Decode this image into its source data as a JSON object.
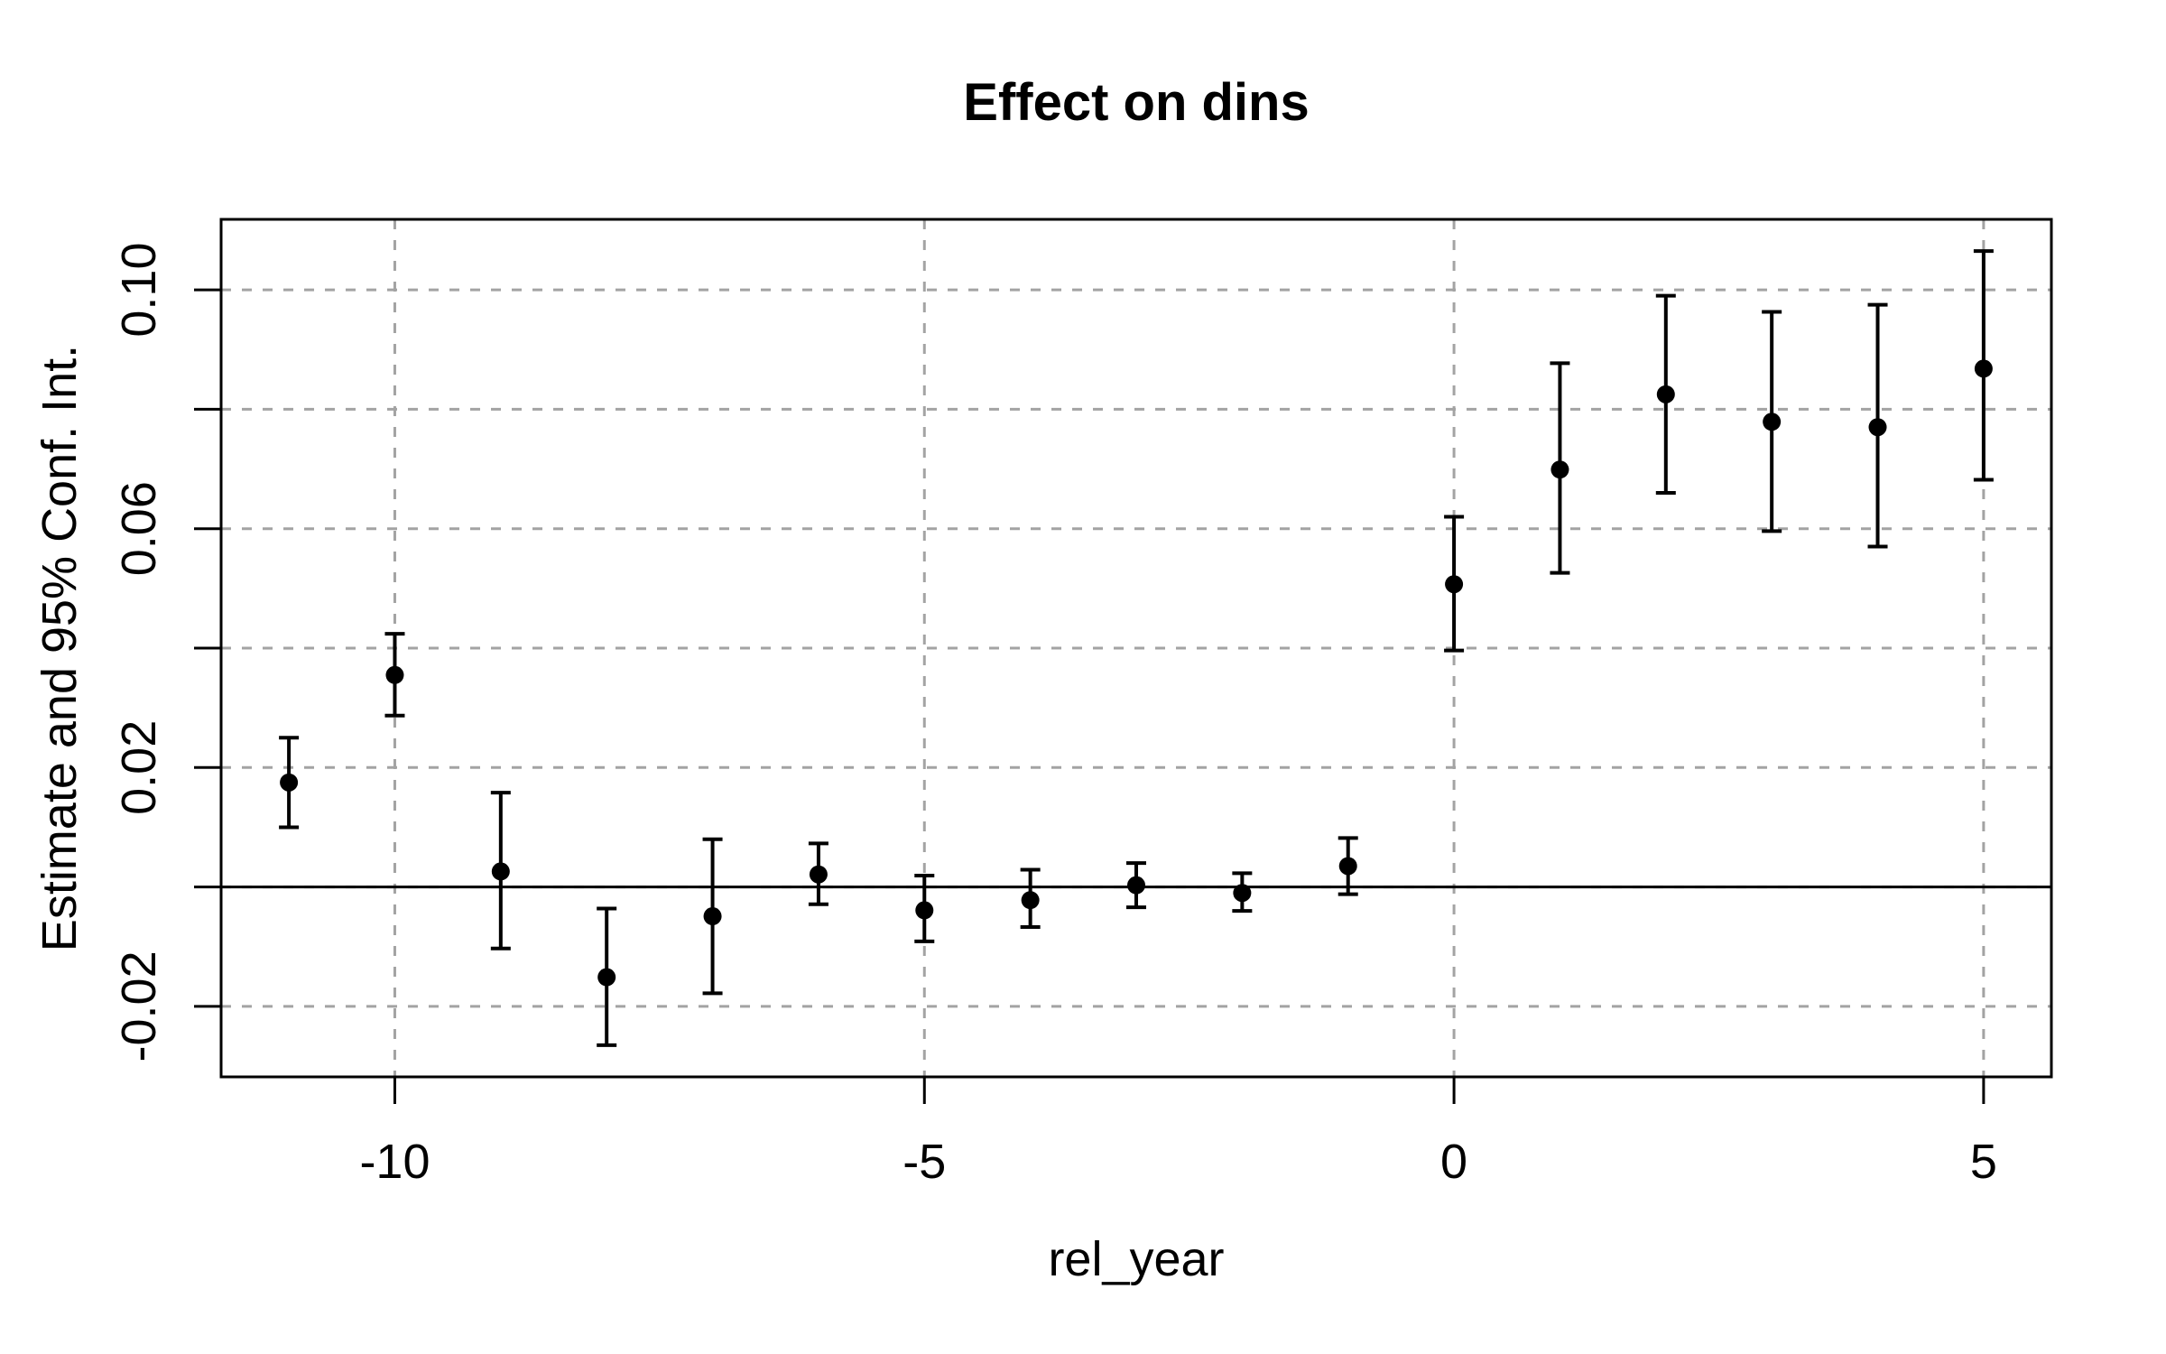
{
  "chart_data": {
    "type": "scatter",
    "title": "Effect on dins",
    "xlabel": "rel_year",
    "ylabel": "Estimate and 95% Conf. Int.",
    "xlim": [
      -11.64,
      5.64
    ],
    "ylim": [
      -0.0318,
      0.1118
    ],
    "grid_on": true,
    "legend": "none",
    "x_ticks": [
      {
        "value": -10,
        "label": "-10"
      },
      {
        "value": -5,
        "label": "-5"
      },
      {
        "value": 0,
        "label": "0"
      },
      {
        "value": 5,
        "label": "5"
      }
    ],
    "y_ticks": [
      {
        "value": 0.1,
        "label": "0.10"
      },
      {
        "value": 0.08,
        "label": ""
      },
      {
        "value": 0.06,
        "label": "0.06"
      },
      {
        "value": 0.04,
        "label": ""
      },
      {
        "value": 0.02,
        "label": "0.02"
      },
      {
        "value": 0.0,
        "label": ""
      },
      {
        "value": -0.02,
        "label": "-0.02"
      }
    ],
    "grid": {
      "x_values": [
        -10,
        -5,
        0,
        5
      ],
      "y_values": [
        0.1,
        0.08,
        0.06,
        0.04,
        0.02,
        0.0,
        -0.02
      ],
      "color": "#a3a3a3"
    },
    "zero_line_y": 0,
    "colors": {
      "points": "#000000",
      "frame": "#000000",
      "background": "#ffffff"
    },
    "series": [
      {
        "name": "estimate",
        "marker": "filled-circle",
        "color": "#000000",
        "points": [
          {
            "x": -11,
            "y": 0.0175,
            "ci_low": 0.01,
            "ci_high": 0.025
          },
          {
            "x": -10,
            "y": 0.0355,
            "ci_low": 0.0287,
            "ci_high": 0.0424
          },
          {
            "x": -9,
            "y": 0.0026,
            "ci_low": -0.0103,
            "ci_high": 0.0158
          },
          {
            "x": -8,
            "y": -0.0151,
            "ci_low": -0.0265,
            "ci_high": -0.0036
          },
          {
            "x": -7,
            "y": -0.0049,
            "ci_low": -0.0178,
            "ci_high": 0.008
          },
          {
            "x": -6,
            "y": 0.0021,
            "ci_low": -0.0029,
            "ci_high": 0.0073
          },
          {
            "x": -5,
            "y": -0.0039,
            "ci_low": -0.0091,
            "ci_high": 0.0019
          },
          {
            "x": -4,
            "y": -0.0022,
            "ci_low": -0.0067,
            "ci_high": 0.0029
          },
          {
            "x": -3,
            "y": 0.0003,
            "ci_low": -0.0034,
            "ci_high": 0.004
          },
          {
            "x": -2,
            "y": -0.001,
            "ci_low": -0.004,
            "ci_high": 0.0023
          },
          {
            "x": -1,
            "y": 0.0035,
            "ci_low": -0.0012,
            "ci_high": 0.0082
          },
          {
            "x": 0,
            "y": 0.0507,
            "ci_low": 0.0396,
            "ci_high": 0.062
          },
          {
            "x": 1,
            "y": 0.0699,
            "ci_low": 0.0526,
            "ci_high": 0.0877
          },
          {
            "x": 2,
            "y": 0.0825,
            "ci_low": 0.066,
            "ci_high": 0.099
          },
          {
            "x": 3,
            "y": 0.0779,
            "ci_low": 0.0596,
            "ci_high": 0.0963
          },
          {
            "x": 4,
            "y": 0.077,
            "ci_low": 0.057,
            "ci_high": 0.0975
          },
          {
            "x": 5,
            "y": 0.0868,
            "ci_low": 0.0682,
            "ci_high": 0.1065
          }
        ]
      }
    ]
  }
}
